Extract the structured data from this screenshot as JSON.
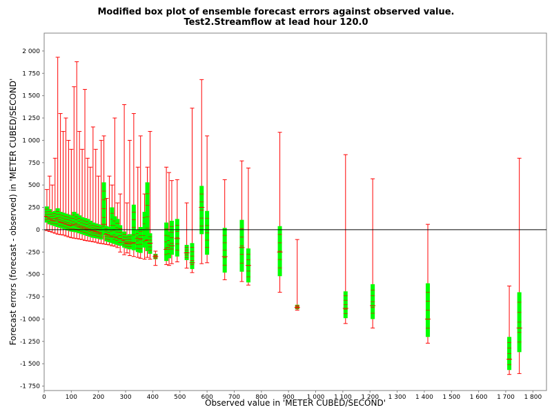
{
  "chart_data": {
    "type": "box",
    "title": "Modified box plot of ensemble forecast errors against observed value.",
    "subtitle": "Test2.Streamflow at lead hour 120.0",
    "xlabel": "Observed value in 'METER CUBED/SECOND'",
    "ylabel": "Forecast errors (forecast - observed) in 'METER CUBED/SECOND'",
    "xlim": [
      0,
      1850
    ],
    "ylim": [
      -1800,
      2200
    ],
    "x_ticks": [
      0,
      100,
      200,
      300,
      400,
      500,
      600,
      700,
      800,
      900,
      1000,
      1100,
      1200,
      1300,
      1400,
      1500,
      1600,
      1700,
      1800
    ],
    "x_tick_labels": [
      "0",
      "100",
      "200",
      "300",
      "400",
      "500",
      "600",
      "700",
      "800",
      "900",
      "1 000",
      "1 100",
      "1 200",
      "1 300",
      "1 400",
      "1 500",
      "1 600",
      "1 700",
      "1 800"
    ],
    "y_ticks": [
      -1750,
      -1500,
      -1250,
      -1000,
      -750,
      -500,
      -250,
      0,
      250,
      500,
      750,
      1000,
      1250,
      1500,
      1750,
      2000
    ],
    "y_tick_labels": [
      "-1 750",
      "-1 500",
      "-1 250",
      "-1 000",
      "-750",
      "-500",
      "-250",
      "0",
      "250",
      "500",
      "750",
      "1 000",
      "1 250",
      "1 500",
      "1 750",
      "2 000"
    ],
    "zero_line": true,
    "grid": false,
    "legend": "none",
    "whisker_color": "#ff0000",
    "box_color": "#00ff00",
    "boxes": [
      {
        "x": 10,
        "min": -10,
        "q1": 80,
        "median": 150,
        "q3": 260,
        "max": 450
      },
      {
        "x": 20,
        "min": -20,
        "q1": 60,
        "median": 130,
        "q3": 230,
        "max": 600
      },
      {
        "x": 30,
        "min": -30,
        "q1": 50,
        "median": 110,
        "q3": 200,
        "max": 500
      },
      {
        "x": 40,
        "min": -40,
        "q1": 40,
        "median": 100,
        "q3": 210,
        "max": 800
      },
      {
        "x": 50,
        "min": -50,
        "q1": 30,
        "median": 120,
        "q3": 240,
        "max": 1930
      },
      {
        "x": 60,
        "min": -55,
        "q1": 20,
        "median": 90,
        "q3": 200,
        "max": 1300
      },
      {
        "x": 70,
        "min": -60,
        "q1": 10,
        "median": 80,
        "q3": 190,
        "max": 1100
      },
      {
        "x": 80,
        "min": -70,
        "q1": 0,
        "median": 70,
        "q3": 180,
        "max": 1250
      },
      {
        "x": 90,
        "min": -80,
        "q1": -10,
        "median": 60,
        "q3": 170,
        "max": 1000
      },
      {
        "x": 100,
        "min": -90,
        "q1": -20,
        "median": 50,
        "q3": 160,
        "max": 900
      },
      {
        "x": 110,
        "min": -95,
        "q1": -25,
        "median": 60,
        "q3": 200,
        "max": 1600
      },
      {
        "x": 120,
        "min": -100,
        "q1": -30,
        "median": 60,
        "q3": 180,
        "max": 1880
      },
      {
        "x": 130,
        "min": -105,
        "q1": -40,
        "median": 40,
        "q3": 160,
        "max": 1100
      },
      {
        "x": 140,
        "min": -110,
        "q1": -50,
        "median": 30,
        "q3": 140,
        "max": 900
      },
      {
        "x": 150,
        "min": -120,
        "q1": -60,
        "median": 20,
        "q3": 130,
        "max": 1570
      },
      {
        "x": 160,
        "min": -125,
        "q1": -70,
        "median": 10,
        "q3": 120,
        "max": 800
      },
      {
        "x": 170,
        "min": -130,
        "q1": -80,
        "median": 0,
        "q3": 100,
        "max": 700
      },
      {
        "x": 180,
        "min": -135,
        "q1": -90,
        "median": -10,
        "q3": 80,
        "max": 1150
      },
      {
        "x": 190,
        "min": -140,
        "q1": -95,
        "median": -20,
        "q3": 70,
        "max": 900
      },
      {
        "x": 200,
        "min": -150,
        "q1": -100,
        "median": -30,
        "q3": 60,
        "max": 600
      },
      {
        "x": 210,
        "min": -155,
        "q1": -110,
        "median": -40,
        "q3": 50,
        "max": 1000
      },
      {
        "x": 220,
        "min": -160,
        "q1": -60,
        "median": 60,
        "q3": 530,
        "max": 1050
      },
      {
        "x": 230,
        "min": -165,
        "q1": -130,
        "median": -50,
        "q3": 40,
        "max": 350
      },
      {
        "x": 240,
        "min": -170,
        "q1": -140,
        "median": -60,
        "q3": 30,
        "max": 600
      },
      {
        "x": 250,
        "min": -180,
        "q1": -150,
        "median": -70,
        "q3": 250,
        "max": 500
      },
      {
        "x": 260,
        "min": -185,
        "q1": -160,
        "median": -80,
        "q3": 150,
        "max": 1250
      },
      {
        "x": 270,
        "min": -200,
        "q1": -170,
        "median": -90,
        "q3": 120,
        "max": 300
      },
      {
        "x": 280,
        "min": -250,
        "q1": -180,
        "median": -100,
        "q3": 50,
        "max": 400
      },
      {
        "x": 295,
        "min": -280,
        "q1": -200,
        "median": -120,
        "q3": -20,
        "max": 1400
      },
      {
        "x": 305,
        "min": -260,
        "q1": -210,
        "median": -150,
        "q3": -60,
        "max": 300
      },
      {
        "x": 315,
        "min": -290,
        "q1": -220,
        "median": -150,
        "q3": -50,
        "max": 1000
      },
      {
        "x": 330,
        "min": -300,
        "q1": -230,
        "median": -150,
        "q3": 280,
        "max": 1300
      },
      {
        "x": 345,
        "min": -310,
        "q1": -250,
        "median": -100,
        "q3": 0,
        "max": 700
      },
      {
        "x": 355,
        "min": -320,
        "q1": -260,
        "median": -100,
        "q3": 30,
        "max": 1050
      },
      {
        "x": 370,
        "min": -330,
        "q1": -200,
        "median": 0,
        "q3": 200,
        "max": 400
      },
      {
        "x": 380,
        "min": -310,
        "q1": -240,
        "median": -120,
        "q3": 530,
        "max": 700
      },
      {
        "x": 390,
        "min": -330,
        "q1": -270,
        "median": -150,
        "q3": -40,
        "max": 1100
      },
      {
        "x": 410,
        "min": -400,
        "q1": -330,
        "median": -300,
        "q3": -270,
        "max": -240
      },
      {
        "x": 450,
        "min": -390,
        "q1": -350,
        "median": -220,
        "q3": 80,
        "max": 700
      },
      {
        "x": 460,
        "min": -400,
        "q1": -320,
        "median": -200,
        "q3": -20,
        "max": 640
      },
      {
        "x": 470,
        "min": -380,
        "q1": -280,
        "median": -180,
        "q3": 100,
        "max": 550
      },
      {
        "x": 490,
        "min": -360,
        "q1": -300,
        "median": -100,
        "q3": 120,
        "max": 560
      },
      {
        "x": 525,
        "min": -430,
        "q1": -340,
        "median": -260,
        "q3": -170,
        "max": 300
      },
      {
        "x": 545,
        "min": -480,
        "q1": -440,
        "median": -370,
        "q3": -150,
        "max": 1360
      },
      {
        "x": 580,
        "min": -380,
        "q1": -50,
        "median": 250,
        "q3": 490,
        "max": 1680
      },
      {
        "x": 600,
        "min": -370,
        "q1": -280,
        "median": 0,
        "q3": 210,
        "max": 1050
      },
      {
        "x": 665,
        "min": -560,
        "q1": -480,
        "median": -300,
        "q3": 20,
        "max": 560
      },
      {
        "x": 728,
        "min": -580,
        "q1": -470,
        "median": -200,
        "q3": 110,
        "max": 770
      },
      {
        "x": 752,
        "min": -620,
        "q1": -590,
        "median": -400,
        "q3": -210,
        "max": 690
      },
      {
        "x": 868,
        "min": -700,
        "q1": -520,
        "median": -250,
        "q3": 40,
        "max": 1090
      },
      {
        "x": 932,
        "min": -900,
        "q1": -890,
        "median": -870,
        "q3": -840,
        "max": -110
      },
      {
        "x": 1110,
        "min": -1050,
        "q1": -990,
        "median": -880,
        "q3": -690,
        "max": 840
      },
      {
        "x": 1210,
        "min": -1100,
        "q1": -1000,
        "median": -850,
        "q3": -610,
        "max": 570
      },
      {
        "x": 1413,
        "min": -1270,
        "q1": -1200,
        "median": -1000,
        "q3": -600,
        "max": 60
      },
      {
        "x": 1713,
        "min": -1620,
        "q1": -1570,
        "median": -1450,
        "q3": -1200,
        "max": -630
      },
      {
        "x": 1750,
        "min": -1610,
        "q1": -1370,
        "median": -1100,
        "q3": -700,
        "max": 800
      }
    ]
  }
}
